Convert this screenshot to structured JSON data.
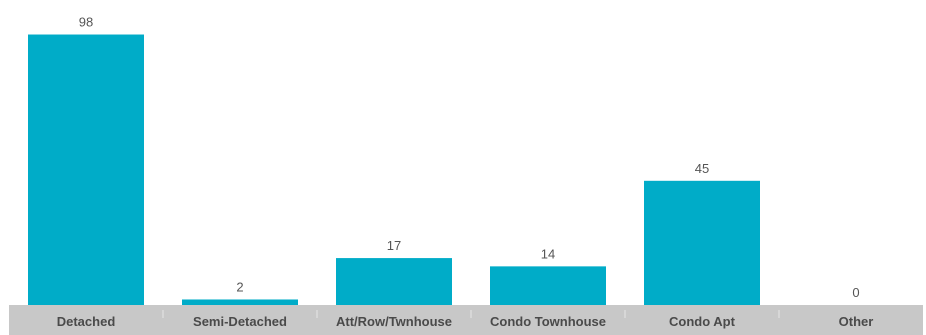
{
  "chart_data": {
    "type": "bar",
    "categories": [
      "Detached",
      "Semi-Detached",
      "Att/Row/Twnhouse",
      "Condo Townhouse",
      "Condo Apt",
      "Other"
    ],
    "values": [
      98,
      2,
      17,
      14,
      45,
      0
    ],
    "data_labels": [
      "98",
      "2",
      "17",
      "14",
      "45",
      "0"
    ],
    "title": "",
    "xlabel": "",
    "ylabel": "",
    "ylim": [
      0,
      100
    ],
    "grid": false,
    "legend": "none",
    "colors": {
      "bar": "#00acc8",
      "axis_band": "#c8c8c8",
      "separator": "#e6e6e6",
      "value_text": "#555555",
      "category_text": "#4a4a4a"
    }
  }
}
